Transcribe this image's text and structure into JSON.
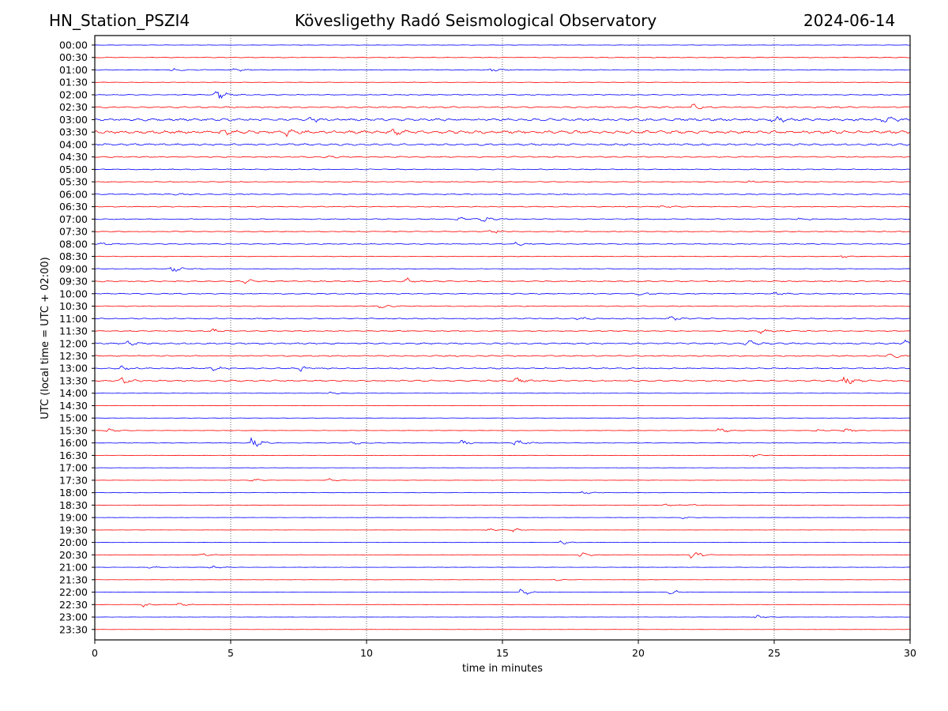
{
  "header": {
    "station": "HN_Station_PSZI4",
    "observatory": "Kövesligethy Radó Seismological Observatory",
    "date": "2024-06-14"
  },
  "chart_data": {
    "type": "line",
    "title": "Kövesligethy Radó Seismological Observatory",
    "xlabel": "time in minutes",
    "ylabel": "UTC (local time = UTC + 02:00)",
    "xlim": [
      0,
      30
    ],
    "xticks": [
      "0",
      "5",
      "10",
      "15",
      "20",
      "25",
      "30"
    ],
    "grid": "vertical dotted lines at x ticks",
    "colors": [
      "#0000ff",
      "#ff0000"
    ],
    "rows": [
      {
        "label": "00:00",
        "activity": 0.15,
        "events": []
      },
      {
        "label": "00:30",
        "activity": 0.3,
        "events": []
      },
      {
        "label": "01:00",
        "activity": 0.3,
        "events": [
          [
            2.9,
            1.2
          ],
          [
            5.2,
            1.0
          ],
          [
            14.6,
            0.8
          ]
        ]
      },
      {
        "label": "01:30",
        "activity": 0.2,
        "events": []
      },
      {
        "label": "02:00",
        "activity": 0.35,
        "events": [
          [
            4.5,
            3.0
          ]
        ]
      },
      {
        "label": "02:30",
        "activity": 0.6,
        "events": [
          [
            22.0,
            1.5
          ]
        ]
      },
      {
        "label": "03:00",
        "activity": 1.0,
        "events": [
          [
            8.0,
            1.2
          ],
          [
            25.0,
            2.0
          ],
          [
            29.0,
            2.5
          ]
        ]
      },
      {
        "label": "03:30",
        "activity": 1.2,
        "events": [
          [
            4.6,
            2.0
          ],
          [
            7.0,
            1.6
          ],
          [
            11.0,
            1.4
          ]
        ]
      },
      {
        "label": "04:00",
        "activity": 0.8,
        "events": []
      },
      {
        "label": "04:30",
        "activity": 0.5,
        "events": [
          [
            8.5,
            1.0
          ]
        ]
      },
      {
        "label": "05:00",
        "activity": 0.4,
        "events": []
      },
      {
        "label": "05:30",
        "activity": 0.3,
        "events": [
          [
            24.0,
            0.8
          ]
        ]
      },
      {
        "label": "06:00",
        "activity": 0.4,
        "events": [
          [
            3.0,
            0.8
          ]
        ]
      },
      {
        "label": "06:30",
        "activity": 0.35,
        "events": [
          [
            20.8,
            0.8
          ]
        ]
      },
      {
        "label": "07:00",
        "activity": 0.4,
        "events": [
          [
            13.4,
            1.2
          ],
          [
            14.3,
            1.2
          ],
          [
            25.8,
            1.0
          ]
        ]
      },
      {
        "label": "07:30",
        "activity": 0.35,
        "events": [
          [
            14.6,
            1.2
          ]
        ]
      },
      {
        "label": "08:00",
        "activity": 0.35,
        "events": [
          [
            0.2,
            1.0
          ],
          [
            15.5,
            0.9
          ]
        ]
      },
      {
        "label": "08:30",
        "activity": 0.25,
        "events": [
          [
            27.5,
            0.8
          ]
        ]
      },
      {
        "label": "09:00",
        "activity": 0.3,
        "events": [
          [
            2.9,
            2.5
          ]
        ]
      },
      {
        "label": "09:30",
        "activity": 0.5,
        "events": [
          [
            5.6,
            1.2
          ],
          [
            11.5,
            1.2
          ]
        ]
      },
      {
        "label": "10:00",
        "activity": 0.4,
        "events": [
          [
            20.0,
            1.0
          ],
          [
            25.0,
            1.0
          ]
        ]
      },
      {
        "label": "10:30",
        "activity": 0.35,
        "events": [
          [
            10.5,
            1.0
          ]
        ]
      },
      {
        "label": "11:00",
        "activity": 0.45,
        "events": [
          [
            17.8,
            1.0
          ],
          [
            21.2,
            1.0
          ]
        ]
      },
      {
        "label": "11:30",
        "activity": 0.35,
        "events": [
          [
            4.3,
            1.0
          ],
          [
            24.5,
            1.0
          ]
        ]
      },
      {
        "label": "12:00",
        "activity": 0.6,
        "events": [
          [
            1.2,
            1.0
          ],
          [
            24.0,
            1.6
          ],
          [
            29.8,
            1.4
          ]
        ]
      },
      {
        "label": "12:30",
        "activity": 0.5,
        "events": [
          [
            29.2,
            1.4
          ]
        ]
      },
      {
        "label": "13:00",
        "activity": 0.5,
        "events": [
          [
            1.0,
            1.2
          ],
          [
            4.3,
            1.2
          ],
          [
            7.6,
            1.2
          ]
        ]
      },
      {
        "label": "13:30",
        "activity": 0.6,
        "events": [
          [
            1.0,
            1.4
          ],
          [
            15.5,
            1.2
          ],
          [
            27.6,
            2.2
          ]
        ]
      },
      {
        "label": "14:00",
        "activity": 0.15,
        "events": [
          [
            8.6,
            0.9
          ]
        ]
      },
      {
        "label": "14:30",
        "activity": 0.15,
        "events": []
      },
      {
        "label": "15:00",
        "activity": 0.12,
        "events": []
      },
      {
        "label": "15:30",
        "activity": 0.15,
        "events": [
          [
            0.45,
            1.5
          ],
          [
            23.0,
            1.8
          ],
          [
            26.5,
            1.0
          ],
          [
            27.6,
            1.4
          ]
        ]
      },
      {
        "label": "16:00",
        "activity": 0.2,
        "events": [
          [
            5.8,
            4.0
          ],
          [
            9.5,
            1.2
          ],
          [
            13.5,
            1.4
          ],
          [
            15.5,
            2.5
          ]
        ]
      },
      {
        "label": "16:30",
        "activity": 0.15,
        "events": [
          [
            24.2,
            1.0
          ]
        ]
      },
      {
        "label": "17:00",
        "activity": 0.1,
        "events": []
      },
      {
        "label": "17:30",
        "activity": 0.12,
        "events": [
          [
            5.8,
            0.8
          ],
          [
            8.6,
            0.8
          ]
        ]
      },
      {
        "label": "18:00",
        "activity": 0.12,
        "events": [
          [
            18.0,
            0.9
          ]
        ]
      },
      {
        "label": "18:30",
        "activity": 0.12,
        "events": [
          [
            21.0,
            0.7
          ],
          [
            21.8,
            0.7
          ]
        ]
      },
      {
        "label": "19:00",
        "activity": 0.1,
        "events": [
          [
            21.6,
            0.7
          ]
        ]
      },
      {
        "label": "19:30",
        "activity": 0.08,
        "events": [
          [
            14.5,
            0.7
          ],
          [
            15.4,
            0.9
          ]
        ]
      },
      {
        "label": "20:00",
        "activity": 0.1,
        "events": [
          [
            17.2,
            1.2
          ]
        ]
      },
      {
        "label": "20:30",
        "activity": 0.12,
        "events": [
          [
            3.9,
            0.9
          ],
          [
            17.9,
            1.2
          ],
          [
            22.0,
            2.2
          ]
        ]
      },
      {
        "label": "21:00",
        "activity": 0.12,
        "events": [
          [
            2.0,
            0.7
          ],
          [
            4.3,
            1.0
          ]
        ]
      },
      {
        "label": "21:30",
        "activity": 0.1,
        "events": [
          [
            17.0,
            0.6
          ]
        ]
      },
      {
        "label": "22:00",
        "activity": 0.12,
        "events": [
          [
            15.7,
            2.0
          ],
          [
            21.2,
            1.4
          ]
        ]
      },
      {
        "label": "22:30",
        "activity": 0.1,
        "events": [
          [
            1.7,
            1.6
          ],
          [
            3.1,
            1.0
          ]
        ]
      },
      {
        "label": "23:00",
        "activity": 0.08,
        "events": [
          [
            24.3,
            1.0
          ]
        ]
      },
      {
        "label": "23:30",
        "activity": 0.08,
        "events": []
      }
    ]
  }
}
